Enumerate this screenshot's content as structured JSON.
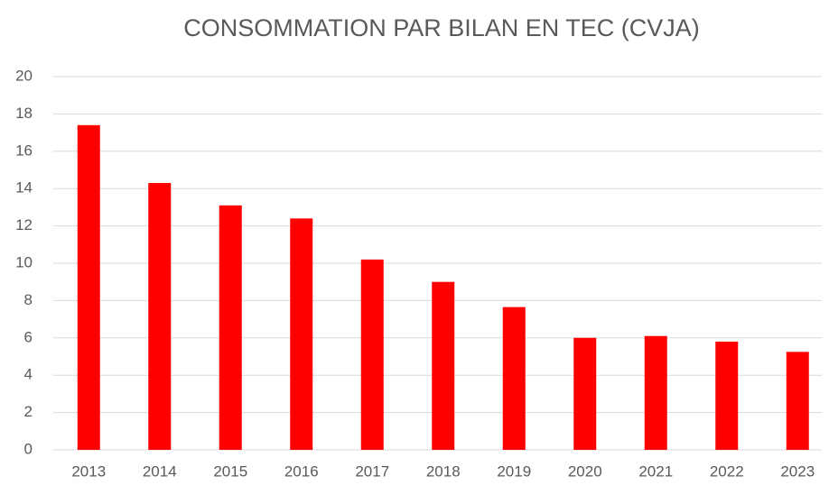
{
  "chart_data": {
    "type": "bar",
    "title": "CONSOMMATION PAR BILAN EN TEC (CVJA)",
    "categories": [
      "2013",
      "2014",
      "2015",
      "2016",
      "2017",
      "2018",
      "2019",
      "2020",
      "2021",
      "2022",
      "2023"
    ],
    "values": [
      17.4,
      14.3,
      13.1,
      12.4,
      10.2,
      9.0,
      7.65,
      6.0,
      6.1,
      5.8,
      5.25
    ],
    "color": "#ff0000",
    "ylim": [
      0,
      20
    ],
    "yticks": [
      0,
      2,
      4,
      6,
      8,
      10,
      12,
      14,
      16,
      18,
      20
    ],
    "grid": true
  }
}
